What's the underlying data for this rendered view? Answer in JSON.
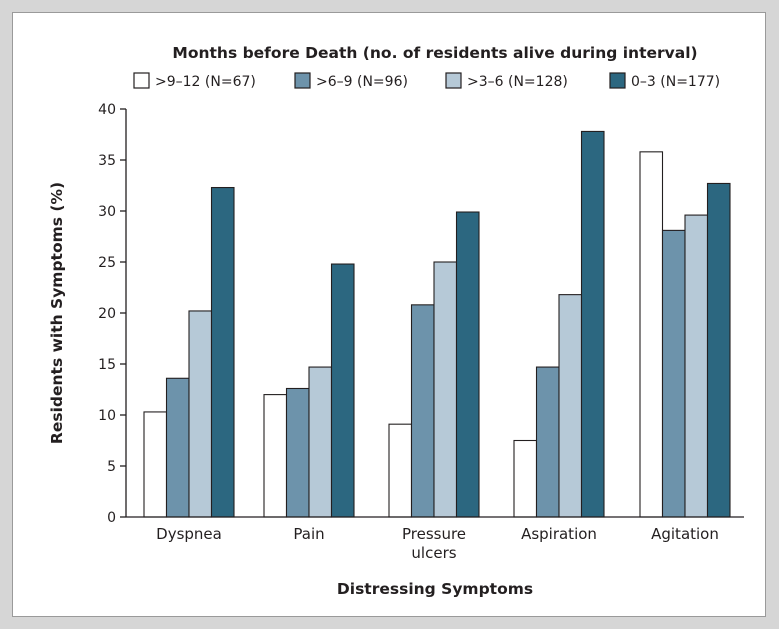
{
  "chart_data": {
    "type": "bar",
    "title": "Months before Death (no. of residents alive during interval)",
    "xlabel": "Distressing Symptoms",
    "ylabel": "Residents with Symptoms (%)",
    "ylim": [
      0,
      40
    ],
    "yticks": [
      0,
      5,
      10,
      15,
      20,
      25,
      30,
      35,
      40
    ],
    "categories": [
      [
        "Dyspnea"
      ],
      [
        "Pain"
      ],
      [
        "Pressure",
        "ulcers"
      ],
      [
        "Aspiration"
      ],
      [
        "Agitation"
      ]
    ],
    "series": [
      {
        "name": ">9–12 (N=67)",
        "color": "#ffffff",
        "values": [
          10.3,
          12.0,
          9.1,
          7.5,
          35.8
        ]
      },
      {
        "name": ">6–9 (N=96)",
        "color": "#6d93ab",
        "values": [
          13.6,
          12.6,
          20.8,
          14.7,
          28.1
        ]
      },
      {
        "name": ">3–6 (N=128)",
        "color": "#b6c9d7",
        "values": [
          20.2,
          14.7,
          25.0,
          21.8,
          29.6
        ]
      },
      {
        "name": "0–3 (N=177)",
        "color": "#2c6780",
        "values": [
          32.3,
          24.8,
          29.9,
          37.8,
          32.7
        ]
      }
    ],
    "legend_position": "top",
    "grid": false
  }
}
